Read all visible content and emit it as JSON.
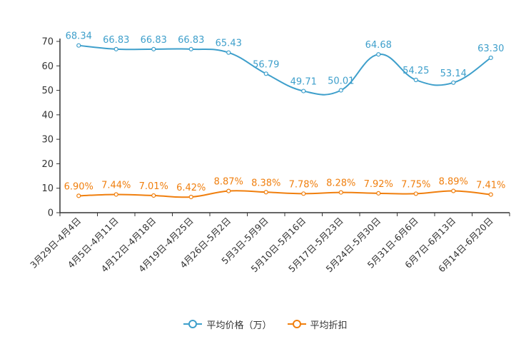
{
  "chart_data": {
    "type": "line",
    "categories": [
      "3月29日-4月4日",
      "4月5日-4月11日",
      "4月12日-4月18日",
      "4月19日-4月25日",
      "4月26日-5月2日",
      "5月3日-5月9日",
      "5月10日-5月16日",
      "5月17日-5月23日",
      "5月24日-5月30日",
      "5月31日-6月6日",
      "6月7日-6月13日",
      "6月14日-6月20日"
    ],
    "series": [
      {
        "name": "平均价格（万）",
        "color": "#3e9fcb",
        "values": [
          68.34,
          66.83,
          66.83,
          66.83,
          65.43,
          56.79,
          49.71,
          50.01,
          64.68,
          54.25,
          53.14,
          63.3
        ],
        "labels": [
          "68.34",
          "66.83",
          "66.83",
          "66.83",
          "65.43",
          "56.79",
          "49.71",
          "50.01",
          "64.68",
          "54.25",
          "53.14",
          "63.30"
        ]
      },
      {
        "name": "平均折扣",
        "color": "#f07f0e",
        "values": [
          6.9,
          7.44,
          7.01,
          6.42,
          8.87,
          8.38,
          7.78,
          8.28,
          7.92,
          7.75,
          8.89,
          7.41
        ],
        "labels": [
          "6.90%",
          "7.44%",
          "7.01%",
          "6.42%",
          "8.87%",
          "8.38%",
          "7.78%",
          "8.28%",
          "7.92%",
          "7.75%",
          "8.89%",
          "7.41%"
        ]
      }
    ],
    "yticks": [
      "0",
      "10",
      "20",
      "30",
      "40",
      "50",
      "60",
      "70"
    ],
    "ylim": [
      0,
      70
    ],
    "title": "",
    "xlabel": "",
    "ylabel": "",
    "legend_position": "bottom-center",
    "grid": false
  },
  "legend": {
    "items": [
      {
        "label": "平均价格（万）"
      },
      {
        "label": "平均折扣"
      }
    ]
  }
}
